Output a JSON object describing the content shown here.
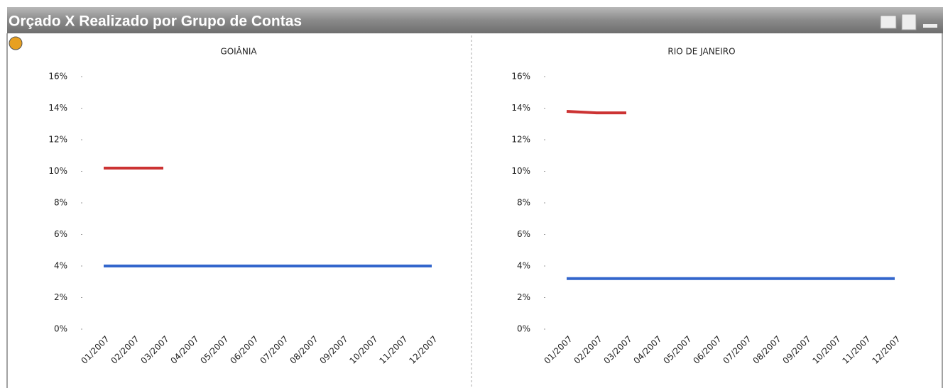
{
  "window_title": "Orçado X Realizado por Grupo de Contas",
  "chart_data": [
    {
      "type": "line",
      "title": "GOIÂNIA",
      "categories": [
        "01/2007",
        "02/2007",
        "03/2007",
        "04/2007",
        "05/2007",
        "06/2007",
        "07/2007",
        "08/2007",
        "09/2007",
        "10/2007",
        "11/2007",
        "12/2007"
      ],
      "series": [
        {
          "color": "#cc3333",
          "values": [
            10.2,
            10.2,
            10.2,
            null,
            null,
            null,
            null,
            null,
            null,
            null,
            null,
            null
          ]
        },
        {
          "color": "#3366cc",
          "values": [
            4.0,
            4.0,
            4.0,
            4.0,
            4.0,
            4.0,
            4.0,
            4.0,
            4.0,
            4.0,
            4.0,
            4.0
          ]
        }
      ],
      "ylim": [
        0,
        16
      ],
      "yticks": [
        {
          "value": 0,
          "label": "0%"
        },
        {
          "value": 2,
          "label": "2%"
        },
        {
          "value": 4,
          "label": "4%"
        },
        {
          "value": 6,
          "label": "6%"
        },
        {
          "value": 8,
          "label": "8%"
        },
        {
          "value": 10,
          "label": "10%"
        },
        {
          "value": 12,
          "label": "12%"
        },
        {
          "value": 14,
          "label": "14%"
        },
        {
          "value": 16,
          "label": "16%"
        }
      ],
      "grid": false
    },
    {
      "type": "line",
      "title": "RIO DE JANEIRO",
      "categories": [
        "01/2007",
        "02/2007",
        "03/2007",
        "04/2007",
        "05/2007",
        "06/2007",
        "07/2007",
        "08/2007",
        "09/2007",
        "10/2007",
        "11/2007",
        "12/2007"
      ],
      "series": [
        {
          "color": "#cc3333",
          "values": [
            13.8,
            13.7,
            13.7,
            null,
            null,
            null,
            null,
            null,
            null,
            null,
            null,
            null
          ]
        },
        {
          "color": "#3366cc",
          "values": [
            3.2,
            3.2,
            3.2,
            3.2,
            3.2,
            3.2,
            3.2,
            3.2,
            3.2,
            3.2,
            3.2,
            3.2
          ]
        }
      ],
      "ylim": [
        0,
        16
      ],
      "yticks": [
        {
          "value": 0,
          "label": "0%"
        },
        {
          "value": 2,
          "label": "2%"
        },
        {
          "value": 4,
          "label": "4%"
        },
        {
          "value": 6,
          "label": "6%"
        },
        {
          "value": 8,
          "label": "8%"
        },
        {
          "value": 10,
          "label": "10%"
        },
        {
          "value": 12,
          "label": "12%"
        },
        {
          "value": 14,
          "label": "14%"
        },
        {
          "value": 16,
          "label": "16%"
        }
      ],
      "grid": false
    }
  ]
}
